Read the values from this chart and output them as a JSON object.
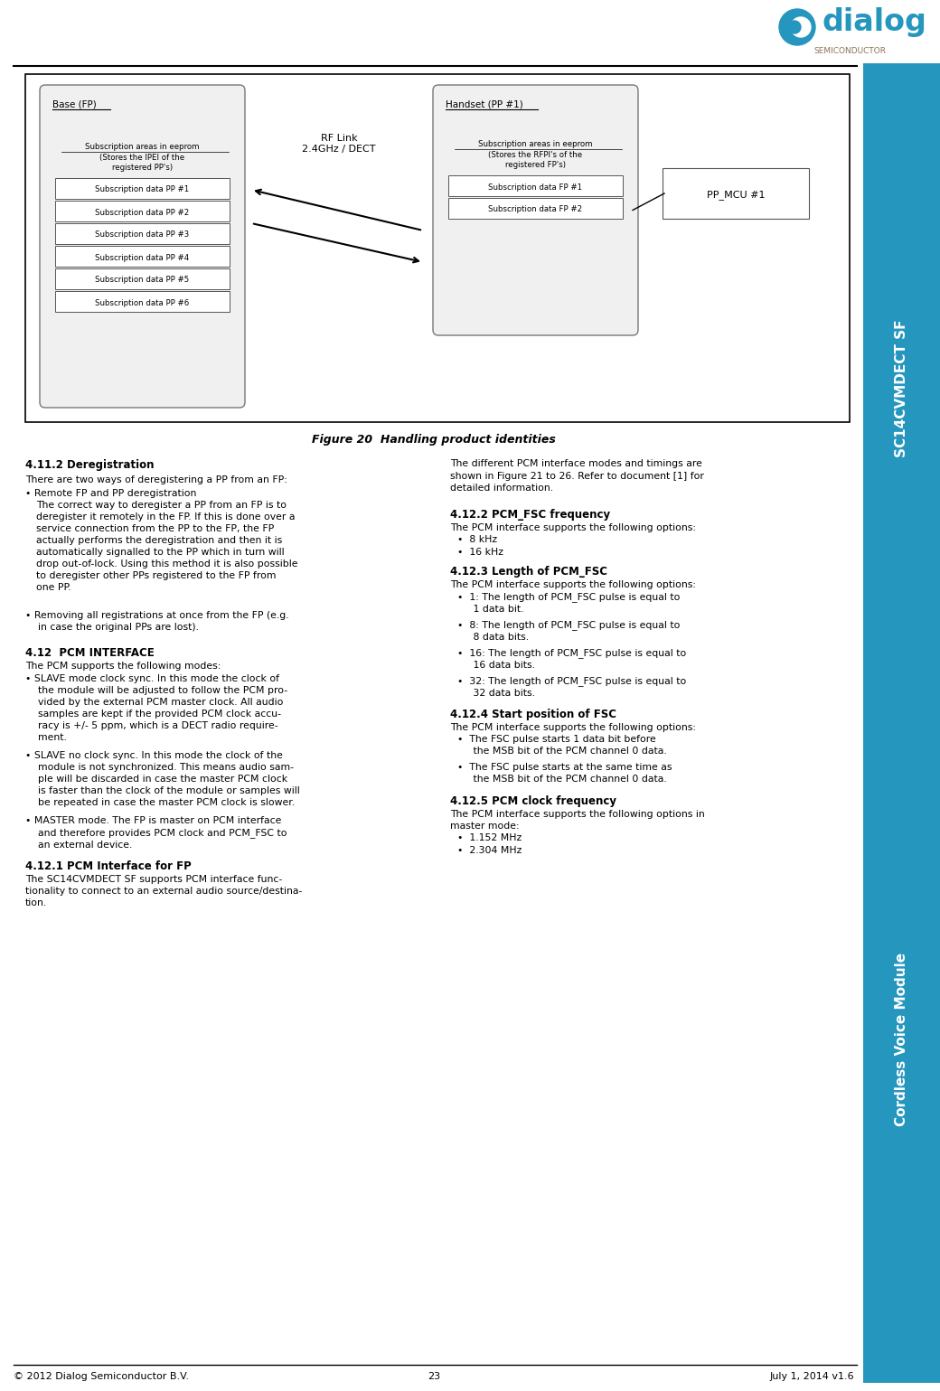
{
  "page_width": 10.4,
  "page_height": 15.39,
  "bg_color": "#ffffff",
  "sidebar_color": "#2596be",
  "sidebar_text1": "SC14CVMDECT SF",
  "sidebar_text2": "Cordless Voice Module",
  "footer_left": "© 2012 Dialog Semiconductor B.V.",
  "footer_center": "23",
  "footer_right": "July 1, 2014 v1.6",
  "figure_caption": "Figure 20  Handling product identities",
  "section_411_title": "4.11.2 Deregistration",
  "section_412_title": "4.12  PCM INTERFACE",
  "section_412_body": "The PCM supports the following modes:",
  "section_412_bullets": [
    "• SLAVE mode clock sync. In this mode the clock of\n    the module will be adjusted to follow the PCM pro-\n    vided by the external PCM master clock. All audio\n    samples are kept if the provided PCM clock accu-\n    racy is +/- 5 ppm, which is a DECT radio require-\n    ment.",
    "• SLAVE no clock sync. In this mode the clock of the\n    module is not synchronized. This means audio sam-\n    ple will be discarded in case the master PCM clock\n    is faster than the clock of the module or samples will\n    be repeated in case the master PCM clock is slower.",
    "• MASTER mode. The FP is master on PCM interface\n    and therefore provides PCM clock and PCM_FSC to\n    an external device."
  ],
  "section_4121_title": "4.12.1 PCM Interface for FP",
  "section_4121_body": "The SC14CVMDECT SF supports PCM interface func-\ntionality to connect to an external audio source/destina-\ntion.",
  "section_4122_title_right": "4.12.2 PCM_FSC frequency",
  "section_4122_body_right": "The PCM interface supports the following options:",
  "section_4122_bullets_right": [
    "•  8 kHz",
    "•  16 kHz"
  ],
  "section_4123_title_right": "4.12.3 Length of PCM_FSC",
  "section_4123_body_right": "The PCM interface supports the following options:",
  "section_4123_bullets_right": [
    "•  1: The length of PCM_FSC pulse is equal to\n     1 data bit.",
    "•  8: The length of PCM_FSC pulse is equal to\n     8 data bits.",
    "•  16: The length of PCM_FSC pulse is equal to\n     16 data bits.",
    "•  32: The length of PCM_FSC pulse is equal to\n     32 data bits."
  ],
  "section_4124_title_right": "4.12.4 Start position of FSC",
  "section_4124_body_right": "The PCM interface supports the following options:",
  "section_4124_bullets_right": [
    "•  The FSC pulse starts 1 data bit before\n     the MSB bit of the PCM channel 0 data.",
    "•  The FSC pulse starts at the same time as\n     the MSB bit of the PCM channel 0 data."
  ],
  "section_4125_title_right": "4.12.5 PCM clock frequency",
  "section_4125_body_right": "The PCM interface supports the following options in\nmaster mode:",
  "section_4125_bullets_right": [
    "•  1.152 MHz",
    "•  2.304 MHz"
  ],
  "right_col_body_412": "The different PCM interface modes and timings are\nshown in Figure 21 to 26. Refer to document [1] for\ndetailed information."
}
